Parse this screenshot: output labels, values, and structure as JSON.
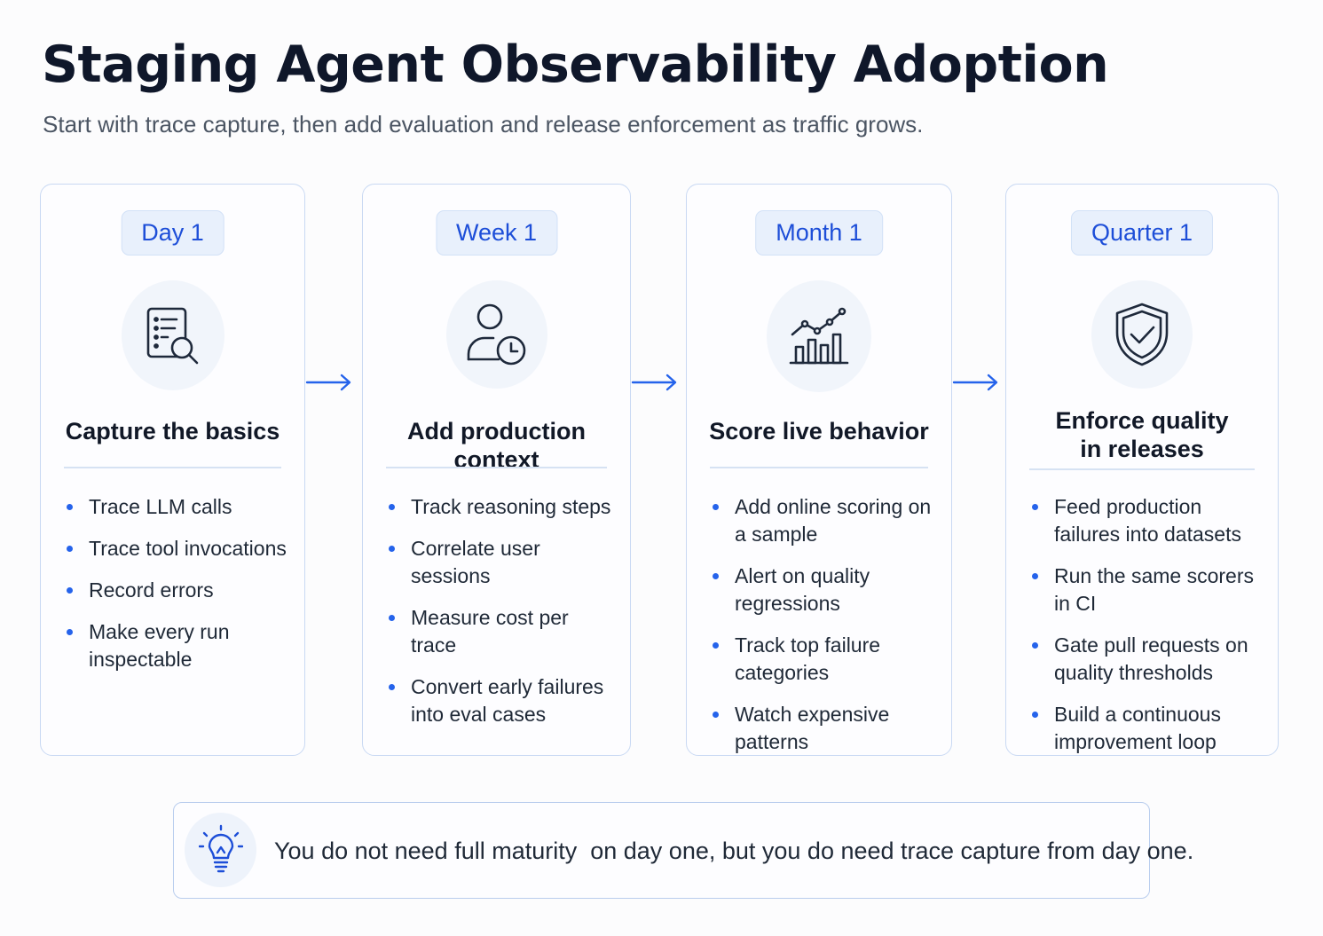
{
  "header": {
    "title": "Staging Agent Observability Adoption",
    "subtitle": "Start with trace capture, then add evaluation and release enforcement as traffic grows."
  },
  "accent_color": "#1d4ed8",
  "stages": [
    {
      "badge": "Day 1",
      "icon": "document-search-icon",
      "title": "Capture the basics",
      "items": [
        "Trace LLM calls",
        "Trace tool invocations",
        "Record errors",
        "Make every run inspectable"
      ]
    },
    {
      "badge": "Week 1",
      "icon": "user-clock-icon",
      "title": "Add production context",
      "items": [
        "Track reasoning steps",
        "Correlate user sessions",
        "Measure cost per trace",
        "Convert early failures into eval cases"
      ]
    },
    {
      "badge": "Month 1",
      "icon": "bar-chart-trend-icon",
      "title": "Score live behavior",
      "items": [
        "Add online scoring on a sample",
        "Alert on quality regressions",
        "Track top failure categories",
        "Watch expensive patterns"
      ]
    },
    {
      "badge": "Quarter 1",
      "icon": "shield-check-icon",
      "title": "Enforce quality in releases",
      "items": [
        "Feed production failures into datasets",
        "Run the same scorers in CI",
        "Gate pull requests on quality thresholds",
        "Build a continuous improvement loop"
      ]
    }
  ],
  "tip": {
    "icon": "lightbulb-icon",
    "text": "You do not need full maturity  on day one, but you do need trace capture from day one."
  }
}
